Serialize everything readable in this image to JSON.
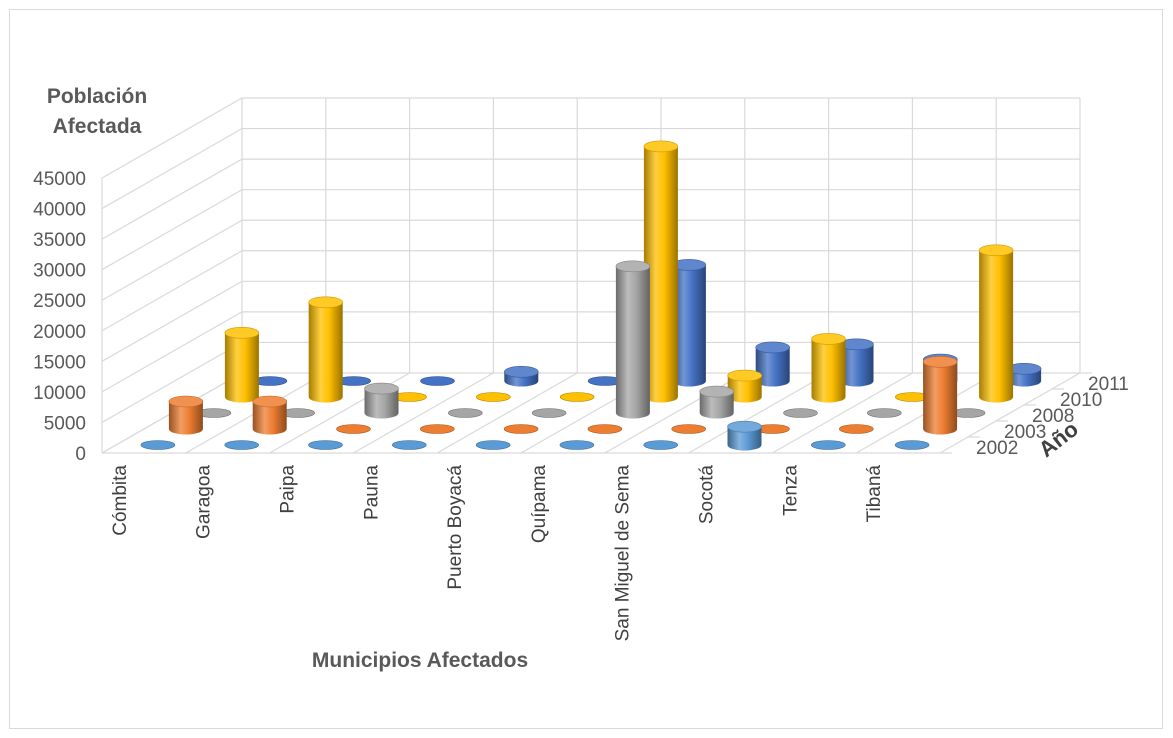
{
  "chart_data": {
    "type": "bar",
    "style": "3d-cylinder",
    "title": "",
    "ylabel_line1": "Población",
    "ylabel_line2": "Afectada",
    "xlabel": "Municipios Afectados",
    "zlabel": "Año",
    "ylim": [
      0,
      45000
    ],
    "yticks": [
      "0",
      "5000",
      "10000",
      "15000",
      "20000",
      "25000",
      "30000",
      "35000",
      "40000",
      "45000"
    ],
    "grid": true,
    "categories": [
      "Cómbita",
      "Garagoa",
      "Paipa",
      "Pauna",
      "Puerto Boyacá",
      "Quípama",
      "San Miguel de Sema",
      "Socotá",
      "Tenza",
      "Tibaná"
    ],
    "series": [
      {
        "name": "2002",
        "color": "#5b9bd5",
        "values": [
          0,
          0,
          0,
          0,
          0,
          0,
          0,
          3000,
          0,
          0
        ]
      },
      {
        "name": "2003",
        "color": "#ed7d31",
        "values": [
          4500,
          4500,
          0,
          0,
          0,
          0,
          0,
          0,
          0,
          11000
        ]
      },
      {
        "name": "2008",
        "color": "#a5a5a5",
        "values": [
          0,
          0,
          4000,
          0,
          0,
          24000,
          3500,
          0,
          0,
          0
        ]
      },
      {
        "name": "2010",
        "color": "#ffc000",
        "values": [
          10500,
          15500,
          0,
          0,
          0,
          41000,
          3500,
          9500,
          0,
          24000
        ]
      },
      {
        "name": "2011",
        "color": "#4472c4",
        "values": [
          0,
          0,
          0,
          1500,
          0,
          19000,
          5500,
          6000,
          3500,
          2000
        ]
      }
    ]
  }
}
